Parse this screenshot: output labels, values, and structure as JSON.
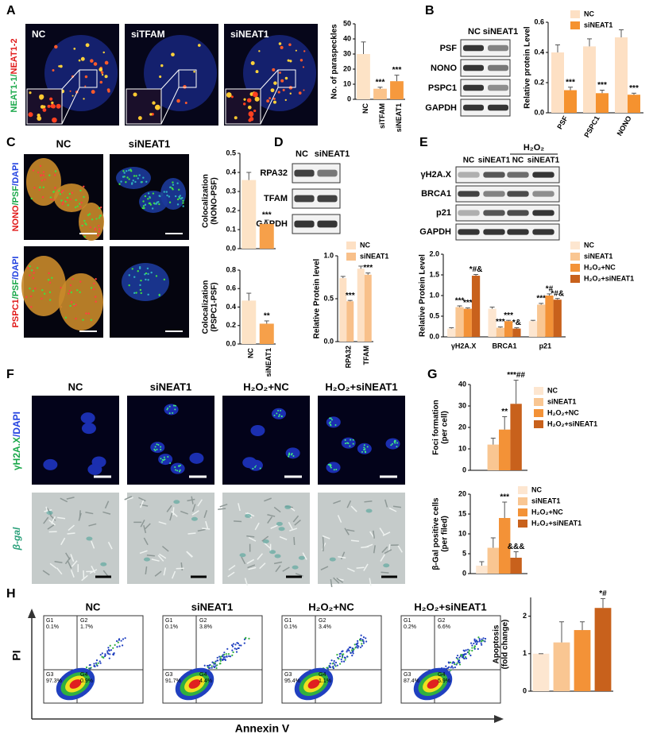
{
  "panels": {
    "A": {
      "label": "A",
      "stain": [
        "NEAT1-1/",
        "NEAT1-2"
      ],
      "images": [
        "NC",
        "siTFAM",
        "siNEAT1"
      ]
    },
    "B": {
      "label": "B",
      "lanes": [
        "NC",
        "siNEAT1"
      ],
      "rows": [
        "PSF",
        "NONO",
        "PSPC1",
        "GAPDH"
      ]
    },
    "C": {
      "label": "C",
      "images": [
        "NC",
        "siNEAT1"
      ],
      "stains": [
        [
          "NONO",
          "/PSF",
          "/DAPI"
        ],
        [
          "PSPC1",
          "/PSF",
          "/DAPI"
        ]
      ]
    },
    "D": {
      "label": "D",
      "lanes": [
        "NC",
        "siNEAT1"
      ],
      "rows": [
        "RPA32",
        "TFAM",
        "GAPDH"
      ]
    },
    "E": {
      "label": "E",
      "treatment": "H₂O₂",
      "lanes": [
        "NC",
        "siNEAT1",
        "NC",
        "siNEAT1"
      ],
      "rows": [
        "γH2A.X",
        "BRCA1",
        "p21",
        "GAPDH"
      ]
    },
    "F": {
      "label": "F",
      "images": [
        "NC",
        "siNEAT1",
        "H₂O₂+NC",
        "H₂O₂+siNEAT1"
      ],
      "stains": [
        [
          "γH2A.X",
          "/DAPI"
        ],
        [
          "β-gal"
        ]
      ]
    },
    "G": {
      "label": "G"
    },
    "H": {
      "label": "H",
      "y_title": "PI",
      "x_title": "Annexin V",
      "plots": [
        {
          "title": "NC",
          "gates": [
            "G1",
            "G2",
            "G3",
            "G4"
          ],
          "percents": [
            "0.1%",
            "1.7%",
            "97.3%",
            "0.9%"
          ]
        },
        {
          "title": "siNEAT1",
          "gates": [
            "G1",
            "G2",
            "G3",
            "G4"
          ],
          "percents": [
            "0.1%",
            "3.8%",
            "91.7%",
            "4.4%"
          ]
        },
        {
          "title": "H₂O₂+NC",
          "gates": [
            "G1",
            "G2",
            "G3",
            "G4"
          ],
          "percents": [
            "0.1%",
            "3.4%",
            "95.4%",
            "1.1%"
          ]
        },
        {
          "title": "H₂O₂+siNEAT1",
          "gates": [
            "G1",
            "G2",
            "G3",
            "G4"
          ],
          "percents": [
            "0.2%",
            "6.6%",
            "87.4%",
            "5.9%"
          ]
        }
      ]
    }
  },
  "chart_data": [
    {
      "type": "bar",
      "ylabel": [
        "No. of paraspeckles"
      ],
      "categories": [
        "NC",
        "siTFAM",
        "siNEAT1"
      ],
      "series": [
        {
          "colors": [
            "#fde3c6",
            "#fbc38a",
            "#f6993d"
          ],
          "values": [
            30,
            7,
            12
          ],
          "errors": [
            8,
            1,
            4
          ],
          "annotations": [
            null,
            "***",
            "***"
          ]
        }
      ],
      "ylim": [
        0,
        50
      ],
      "yticks": [
        0,
        10,
        20,
        30,
        40,
        50
      ]
    },
    {
      "type": "bar",
      "ylabel": [
        "Relative protein Level"
      ],
      "categories": [
        "PSF",
        "PSPC1",
        "NONO"
      ],
      "series": [
        {
          "name": "NC",
          "color": "#fde0c4",
          "values": [
            0.4,
            0.44,
            0.5
          ],
          "errors": [
            0.05,
            0.05,
            0.05
          ]
        },
        {
          "name": "siNEAT1",
          "color": "#f5922f",
          "values": [
            0.15,
            0.13,
            0.12
          ],
          "errors": [
            0.02,
            0.02,
            0.01
          ],
          "annotations": [
            "***",
            "***",
            "***"
          ]
        }
      ],
      "ylim": [
        0,
        0.6
      ],
      "yticks": [
        {
          "value": 0,
          "label": "0.0"
        },
        0.2,
        0.4,
        0.6
      ]
    },
    {
      "type": "bar",
      "ylabel": [
        "Colocalization",
        "(NONO-PSF)"
      ],
      "categories": [
        null,
        null
      ],
      "series": [
        {
          "colors": [
            "#fde3c6",
            "#f6a04a"
          ],
          "values": [
            0.36,
            0.13
          ],
          "errors": [
            0.04,
            0.02
          ],
          "annotations": [
            null,
            "***"
          ]
        }
      ],
      "ylim": [
        0,
        0.5
      ],
      "yticks": [
        {
          "value": 0,
          "label": "0.0"
        },
        0.1,
        0.2,
        0.3,
        0.4,
        0.5
      ]
    },
    {
      "type": "bar",
      "ylabel": [
        "Colocalization",
        "(PSPC1-PSF)"
      ],
      "categories": [
        "NC",
        "siNEAT1"
      ],
      "series": [
        {
          "colors": [
            "#fde3c6",
            "#f6a04a"
          ],
          "values": [
            0.47,
            0.22
          ],
          "errors": [
            0.08,
            0.03
          ],
          "annotations": [
            null,
            "**"
          ]
        }
      ],
      "ylim": [
        0,
        0.8
      ],
      "yticks": [
        {
          "value": 0,
          "label": "0.0"
        },
        0.2,
        0.4,
        0.6,
        0.8
      ]
    },
    {
      "type": "bar",
      "ylabel": [
        "Relative Protein level"
      ],
      "categories": [
        "RPA32",
        "TFAM"
      ],
      "series": [
        {
          "name": "NC",
          "color": "#fde0c4",
          "values": [
            0.74,
            0.85
          ],
          "errors": [
            0.02,
            0.03
          ]
        },
        {
          "name": "siNEAT1",
          "color": "#f8c08a",
          "values": [
            0.47,
            0.78
          ],
          "errors": [
            0.01,
            0.02
          ],
          "annotations": [
            "***",
            "***"
          ]
        }
      ],
      "ylim": [
        0,
        1
      ],
      "yticks": [
        {
          "value": 0,
          "label": "0.0"
        },
        0.5,
        {
          "value": 1,
          "label": "1.0"
        }
      ]
    },
    {
      "type": "bar",
      "ylabel": [
        "Relative Protein Level"
      ],
      "categories": [
        "γH2A.X",
        "BRCA1",
        "p21"
      ],
      "series": [
        {
          "name": "NC",
          "color": "#fde6d0",
          "values": [
            0.2,
            0.68,
            0.38
          ],
          "errors": [
            0.02,
            0.04,
            0.02
          ]
        },
        {
          "name": "siNEAT1",
          "color": "#f9c692",
          "values": [
            0.72,
            0.22,
            0.78
          ],
          "errors": [
            0.03,
            0.02,
            0.03
          ],
          "annotations": [
            "***",
            "***",
            "***"
          ]
        },
        {
          "name": "H₂O₂+NC",
          "color": "#f39237",
          "values": [
            0.68,
            0.38,
            1.0
          ],
          "errors": [
            0.02,
            0.02,
            0.04
          ],
          "annotations": [
            "***",
            "***",
            "*#"
          ]
        },
        {
          "name": "H₂O₂+siNEAT1",
          "color": "#c8611c",
          "values": [
            1.48,
            0.2,
            0.9
          ],
          "errors": [
            0.03,
            0.02,
            0.03
          ],
          "annotations": [
            "*#&",
            "*&",
            "*#&"
          ]
        }
      ],
      "ylim": [
        0,
        2
      ],
      "yticks": [
        {
          "value": 0,
          "label": "0.0"
        },
        0.5,
        {
          "value": 1,
          "label": "1.0"
        },
        1.5,
        {
          "value": 2,
          "label": "2.0"
        }
      ]
    },
    {
      "type": "bar",
      "ylabel": [
        "Foci formation",
        "(per cell)"
      ],
      "categories": [
        null
      ],
      "series": [
        {
          "name": "NC",
          "color": "#fde6d0",
          "values": [
            null
          ]
        },
        {
          "name": "siNEAT1",
          "color": "#f9c692",
          "values": [
            12
          ],
          "errors": [
            3
          ]
        },
        {
          "name": "H₂O₂+NC",
          "color": "#f39237",
          "values": [
            19
          ],
          "errors": [
            6
          ],
          "annotations": [
            "**"
          ]
        },
        {
          "name": "H₂O₂+siNEAT1",
          "color": "#c8611c",
          "values": [
            31
          ],
          "errors": [
            11
          ],
          "annotations": [
            "***##"
          ]
        }
      ],
      "ylim": [
        0,
        40
      ],
      "yticks": [
        0,
        10,
        20,
        30,
        40
      ]
    },
    {
      "type": "bar",
      "ylabel": [
        "β-Gal positive cells",
        "(per filed)"
      ],
      "categories": [
        null
      ],
      "series": [
        {
          "name": "NC",
          "color": "#fde6d0",
          "values": [
            2
          ],
          "errors": [
            1
          ]
        },
        {
          "name": "siNEAT1",
          "color": "#f9c692",
          "values": [
            6.5
          ],
          "errors": [
            2.5
          ]
        },
        {
          "name": "H₂O₂+NC",
          "color": "#f39237",
          "values": [
            14
          ],
          "errors": [
            4
          ],
          "annotations": [
            "***"
          ]
        },
        {
          "name": "H₂O₂+siNEAT1",
          "color": "#c8611c",
          "values": [
            4
          ],
          "errors": [
            1.5
          ],
          "annotations": [
            "&&&"
          ]
        }
      ],
      "ylim": [
        0,
        20
      ],
      "yticks": [
        0,
        5,
        10,
        15,
        20
      ]
    },
    {
      "type": "bar",
      "ylabel": [
        "Apoptosis",
        "(fold change)"
      ],
      "categories": [
        null,
        null,
        null,
        null
      ],
      "series": [
        {
          "colors": [
            "#fde6d0",
            "#f9c692",
            "#f39237",
            "#c8611c"
          ],
          "values": [
            1.0,
            1.3,
            1.63,
            2.22
          ],
          "errors": [
            0,
            0.55,
            0.22,
            0.25
          ],
          "annotations": [
            null,
            null,
            null,
            "*#"
          ]
        }
      ],
      "ylim": [
        0,
        2.5
      ],
      "yticks": [
        0,
        1,
        2
      ]
    }
  ]
}
